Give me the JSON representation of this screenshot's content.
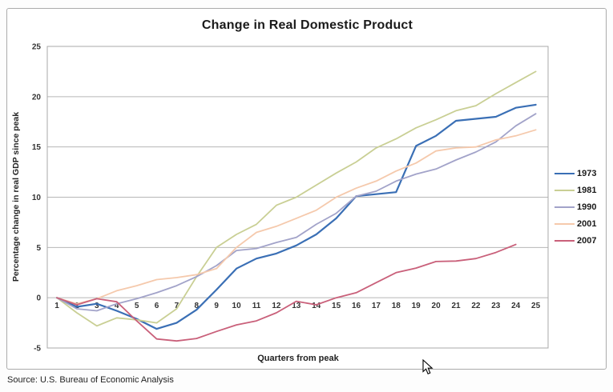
{
  "source": {
    "text": "Source: U.S. Bureau of Economic Analysis"
  },
  "chart_data": {
    "type": "line",
    "title": "Change in Real Domestic Product",
    "xlabel": "Quarters from peak",
    "ylabel": "Percentage change in real GDP since peak",
    "x": [
      1,
      2,
      3,
      4,
      5,
      6,
      7,
      8,
      9,
      10,
      11,
      12,
      13,
      14,
      15,
      16,
      17,
      18,
      19,
      20,
      21,
      22,
      23,
      24,
      25
    ],
    "xlim": [
      1,
      25
    ],
    "ylim": [
      -5,
      25
    ],
    "ytick_interval": 5,
    "yticks": [
      -5,
      0,
      5,
      10,
      15,
      20,
      25
    ],
    "grid": "horizontal",
    "legend_position": "right",
    "series": [
      {
        "name": "1973",
        "color": "#3a6fb5",
        "width": 2.2,
        "values": [
          0,
          -0.9,
          -0.6,
          -1.3,
          -2.1,
          -3.1,
          -2.5,
          -1.2,
          0.8,
          2.9,
          3.9,
          4.4,
          5.2,
          6.3,
          7.9,
          10.1,
          10.3,
          10.5,
          15.1,
          16.1,
          17.6,
          17.8,
          18.0,
          18.9,
          19.2
        ]
      },
      {
        "name": "1981",
        "color": "#c9cf94",
        "width": 1.8,
        "values": [
          0,
          -1.5,
          -2.8,
          -2.0,
          -2.2,
          -2.5,
          -1.1,
          2.1,
          5.0,
          6.3,
          7.3,
          9.2,
          10.0,
          11.2,
          12.4,
          13.5,
          14.9,
          15.8,
          16.9,
          17.7,
          18.6,
          19.1,
          20.3,
          21.4,
          22.5
        ]
      },
      {
        "name": "1990",
        "color": "#a2a3c9",
        "width": 1.8,
        "values": [
          0,
          -1.1,
          -1.3,
          -0.6,
          -0.1,
          0.5,
          1.2,
          2.1,
          3.2,
          4.7,
          4.9,
          5.5,
          6.0,
          7.3,
          8.4,
          10.1,
          10.6,
          11.6,
          12.3,
          12.8,
          13.7,
          14.5,
          15.5,
          17.1,
          18.3
        ]
      },
      {
        "name": "2001",
        "color": "#f5c9ac",
        "width": 1.8,
        "values": [
          0,
          -0.6,
          -0.1,
          0.7,
          1.2,
          1.8,
          2.0,
          2.3,
          2.9,
          5.0,
          6.5,
          7.1,
          7.9,
          8.7,
          10.0,
          10.9,
          11.6,
          12.6,
          13.4,
          14.6,
          14.9,
          15.0,
          15.7,
          16.1,
          16.7
        ]
      },
      {
        "name": "2007",
        "color": "#c9607a",
        "width": 1.8,
        "values": [
          0,
          -0.7,
          -0.1,
          -0.4,
          -2.3,
          -4.1,
          -4.3,
          -4.05,
          -3.35,
          -2.7,
          -2.3,
          -1.5,
          -0.35,
          -0.7,
          0.0,
          0.5,
          1.5,
          2.5,
          2.95,
          3.6,
          3.65,
          3.9,
          4.5,
          5.3
        ]
      }
    ]
  }
}
